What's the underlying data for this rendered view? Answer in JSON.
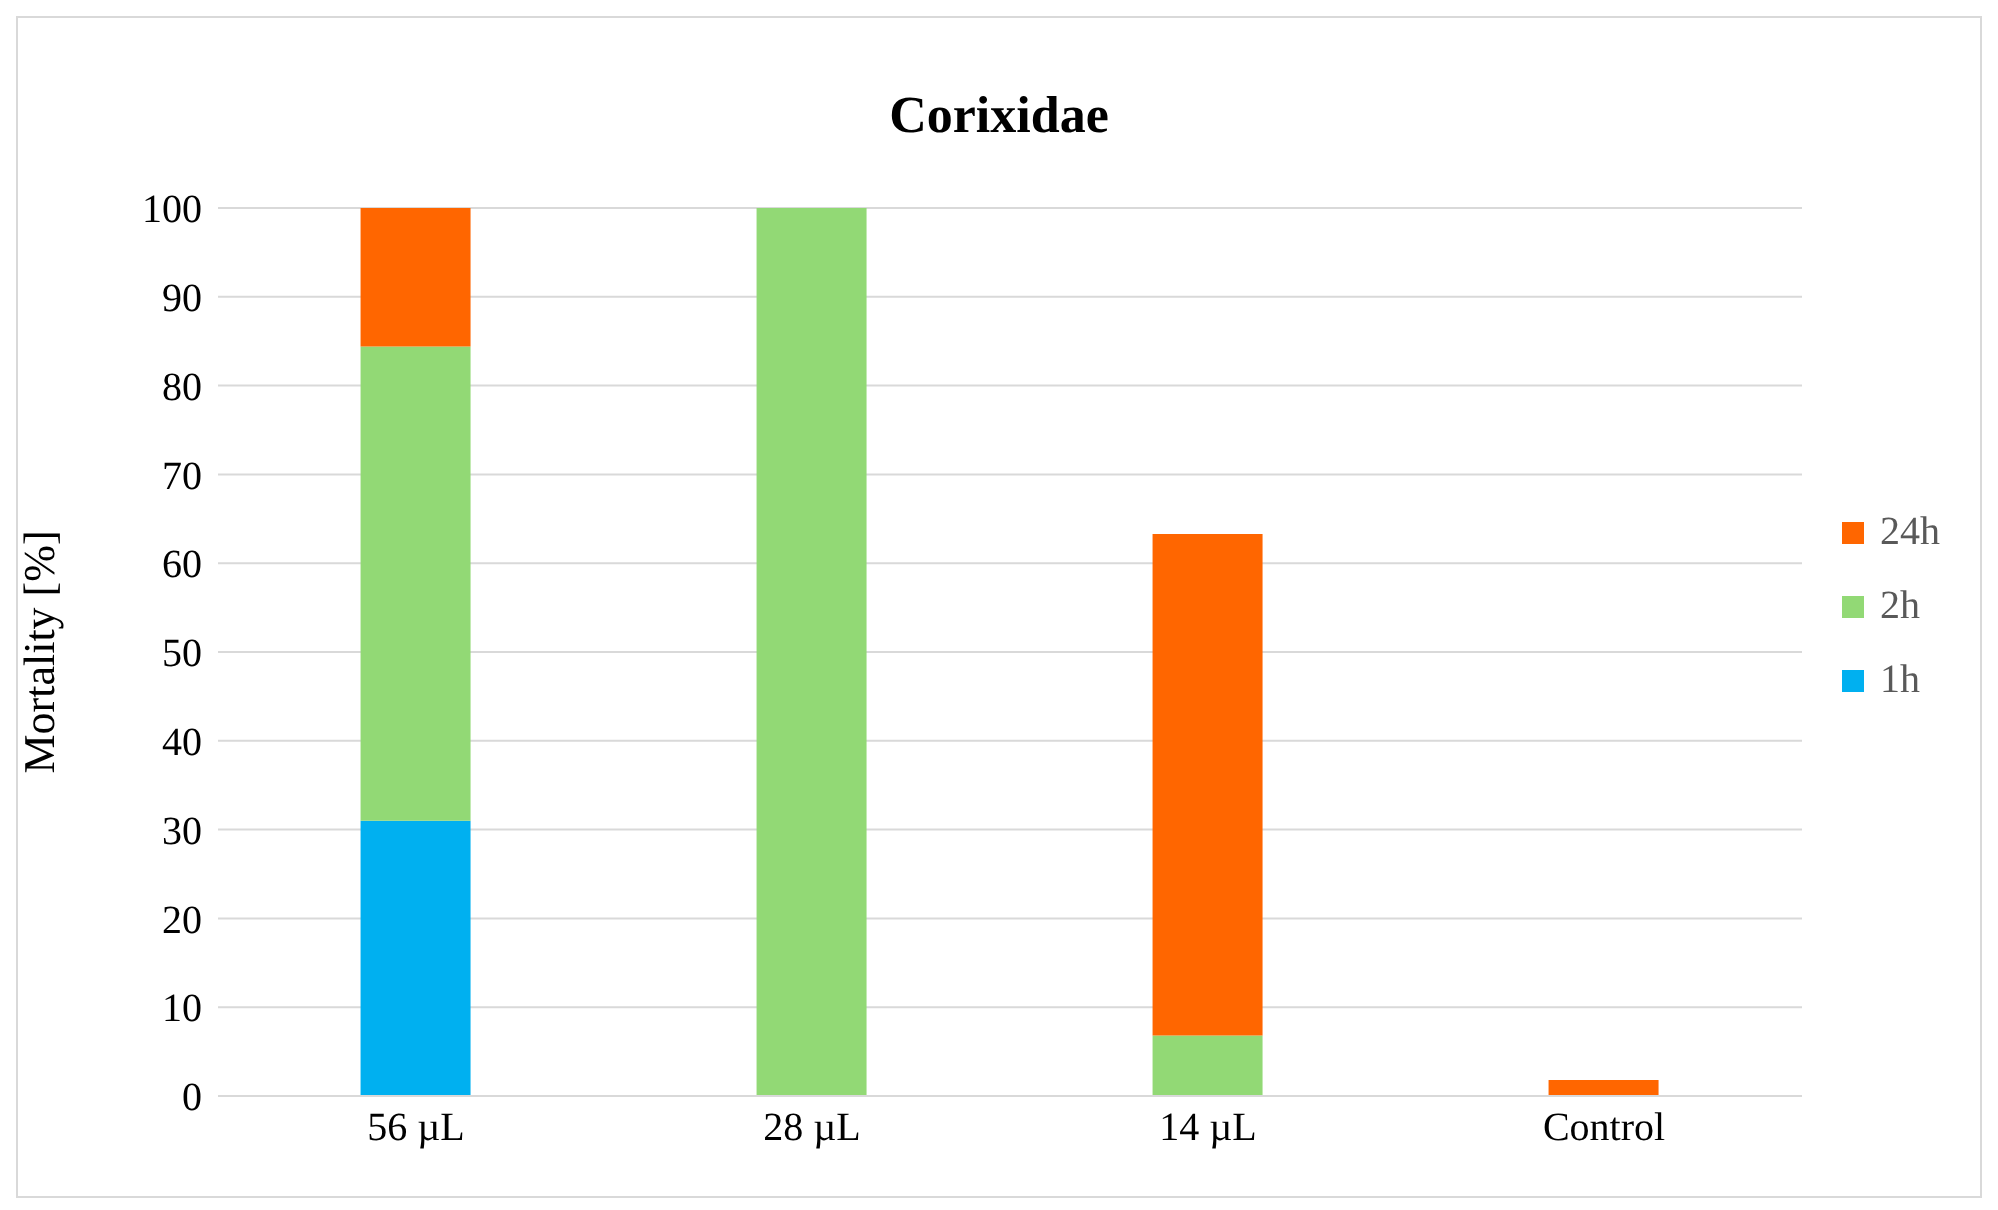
{
  "chart_data": {
    "type": "bar",
    "title": "Corixidae",
    "ylabel": "Mortality [%]",
    "categories": [
      "56 µL",
      "28 µL",
      "14 µL",
      "Control"
    ],
    "series": [
      {
        "name": "1h",
        "color": "#00b0f0",
        "values": [
          31,
          null,
          null,
          null
        ]
      },
      {
        "name": "2h",
        "color": "#92d975",
        "values": [
          53.4,
          100,
          6.8,
          null
        ]
      },
      {
        "name": "24h",
        "color": "#ff6600",
        "values": [
          15.6,
          null,
          56.5,
          1.8
        ]
      }
    ],
    "stacked": true,
    "ylim": [
      0,
      100
    ],
    "yticks": [
      0,
      10,
      20,
      30,
      40,
      50,
      60,
      70,
      80,
      90,
      100
    ],
    "grid": "y",
    "legend": "right"
  }
}
